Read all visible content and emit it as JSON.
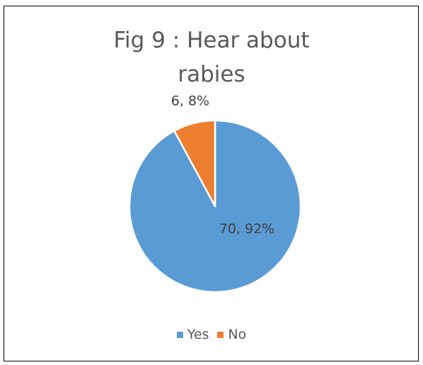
{
  "chart_data": {
    "type": "pie",
    "title": "Fig 9 : Hear about rabies",
    "title_lines": [
      "Fig 9 : Hear about",
      "rabies"
    ],
    "categories": [
      "Yes",
      "No"
    ],
    "values": [
      70,
      6
    ],
    "percentages": [
      92,
      8
    ],
    "data_labels": [
      "70, 92%",
      "6, 8%"
    ],
    "colors": [
      "#5B9BD5",
      "#ED7D31"
    ],
    "legend_position": "bottom",
    "start_angle": "12 o'clock",
    "direction": "clockwise"
  }
}
